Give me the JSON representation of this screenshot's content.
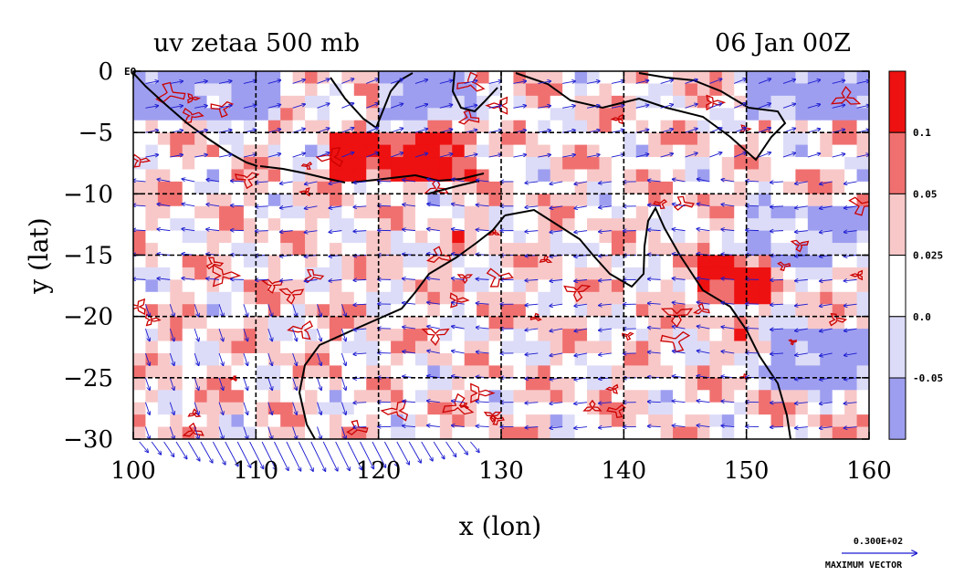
{
  "chart_data": {
    "type": "heatmap",
    "title": "uv zetaa 500 mb",
    "time_label": "06 Jan 00Z",
    "xlabel": "x (lon)",
    "ylabel": "y (lat)",
    "xlim": [
      100,
      160
    ],
    "ylim": [
      -30,
      0
    ],
    "x_ticks": [
      {
        "value": 100,
        "label": "100"
      },
      {
        "value": 110,
        "label": "110"
      },
      {
        "value": 120,
        "label": "120"
      },
      {
        "value": 130,
        "label": "130"
      },
      {
        "value": 140,
        "label": "140"
      },
      {
        "value": 150,
        "label": "150"
      },
      {
        "value": 160,
        "label": "160"
      }
    ],
    "y_ticks": [
      {
        "value": 0,
        "label": "0"
      },
      {
        "value": -5,
        "label": "−5"
      },
      {
        "value": -10,
        "label": "−10"
      },
      {
        "value": -15,
        "label": "−15"
      },
      {
        "value": -20,
        "label": "−20"
      },
      {
        "value": -25,
        "label": "−25"
      },
      {
        "value": -30,
        "label": "−30"
      }
    ],
    "equator_label": "EQ",
    "grid": true,
    "colorbar": {
      "bins": [
        {
          "color": "#ee1111"
        },
        {
          "color": "#f07070"
        },
        {
          "color": "#f8c8c8"
        },
        {
          "color": "#ffffff"
        },
        {
          "color": "#dcdcf8"
        },
        {
          "color": "#9e9ef0"
        }
      ],
      "boundaries": [
        "0.1",
        "0.05",
        "0.025",
        "0.0",
        "-0.05"
      ]
    },
    "vector_reference": {
      "magnitude_label": "0.300E+02",
      "caption": "MAXIMUM VECTOR"
    },
    "colors": {
      "coastline": "#000000",
      "contour": "#cc0000",
      "vector": "#1a1ad0",
      "grid": "#000000"
    }
  }
}
